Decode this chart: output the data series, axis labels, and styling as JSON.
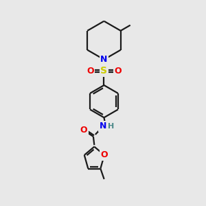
{
  "bg_color": "#e8e8e8",
  "bond_color": "#1a1a1a",
  "N_color": "#0000ee",
  "O_color": "#ee0000",
  "S_color": "#cccc00",
  "H_color": "#4a8888",
  "line_width": 1.6,
  "figsize": [
    3.0,
    3.0
  ],
  "dpi": 100,
  "xlim": [
    0,
    10
  ],
  "ylim": [
    0,
    10
  ]
}
